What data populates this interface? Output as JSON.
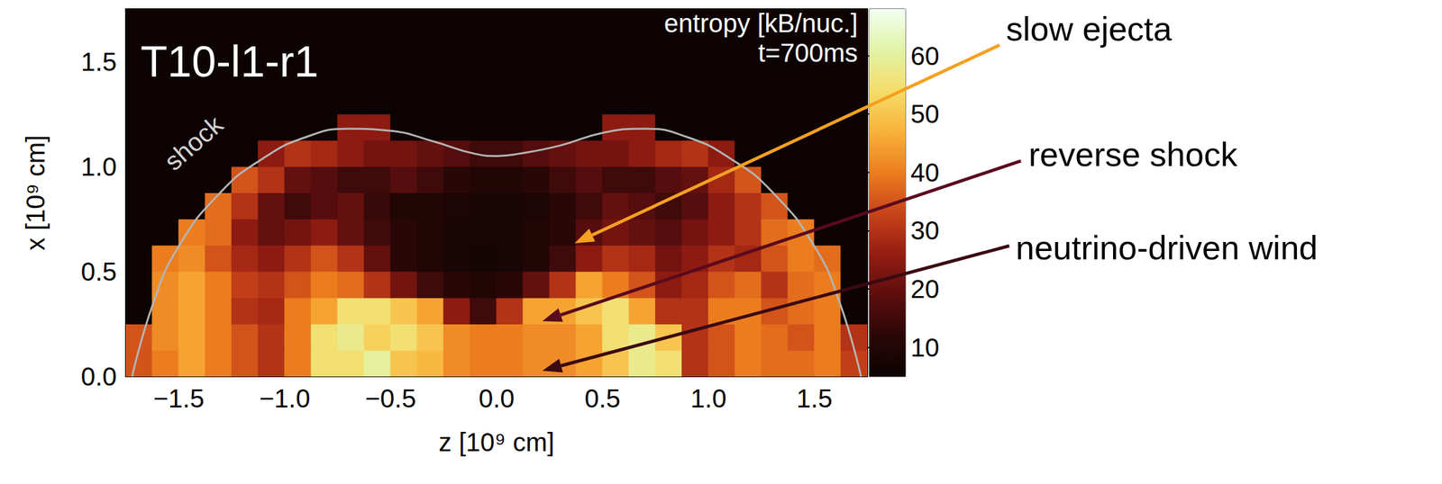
{
  "chart_data": {
    "type": "heatmap",
    "title": "T10-l1-r1",
    "subtitle": "t=700ms",
    "xlabel": "z [10⁹ cm]",
    "ylabel": "x [10⁹ cm]",
    "xlim": [
      -1.75,
      1.75
    ],
    "ylim": [
      0,
      1.75
    ],
    "xticks": [
      {
        "value": -1.5,
        "label": "−1.5"
      },
      {
        "value": -1,
        "label": "−1.0"
      },
      {
        "value": -0.5,
        "label": "−0.5"
      },
      {
        "value": 0,
        "label": "0.0"
      },
      {
        "value": 0.5,
        "label": "0.5"
      },
      {
        "value": 1,
        "label": "1.0"
      },
      {
        "value": 1.5,
        "label": "1.5"
      }
    ],
    "yticks": [
      {
        "value": 0,
        "label": "0.0"
      },
      {
        "value": 0.5,
        "label": "0.5"
      },
      {
        "value": 1,
        "label": "1.0"
      },
      {
        "value": 1.5,
        "label": "1.5"
      }
    ],
    "x_edges": [
      -1.75,
      -1.625,
      -1.5,
      -1.375,
      -1.25,
      -1.125,
      -1,
      -0.875,
      -0.75,
      -0.625,
      -0.5,
      -0.375,
      -0.25,
      -0.125,
      0,
      0.125,
      0.25,
      0.375,
      0.5,
      0.625,
      0.75,
      0.875,
      1,
      1.125,
      1.25,
      1.375,
      1.5,
      1.625,
      1.75
    ],
    "y_edges": [
      0,
      0.125,
      0.25,
      0.375,
      0.5,
      0.625,
      0.75,
      0.875,
      1,
      1.125,
      1.25,
      1.375,
      1.5,
      1.625,
      1.75
    ],
    "cells": [
      [
        35,
        40,
        45,
        40,
        35,
        30,
        40,
        55,
        55,
        60,
        50,
        48,
        42,
        40,
        40,
        42,
        42,
        45,
        50,
        58,
        55,
        30,
        35,
        40,
        38,
        38,
        40,
        32
      ],
      [
        35,
        42,
        45,
        40,
        35,
        30,
        40,
        55,
        58,
        52,
        55,
        50,
        42,
        40,
        40,
        42,
        42,
        45,
        55,
        58,
        50,
        30,
        35,
        40,
        38,
        35,
        40,
        30
      ],
      [
        5,
        42,
        45,
        40,
        30,
        28,
        40,
        45,
        55,
        55,
        50,
        45,
        25,
        15,
        30,
        45,
        45,
        50,
        55,
        45,
        30,
        30,
        40,
        40,
        35,
        38,
        40,
        5
      ],
      [
        5,
        42,
        45,
        40,
        32,
        30,
        35,
        40,
        38,
        30,
        22,
        15,
        12,
        10,
        12,
        20,
        30,
        45,
        40,
        35,
        25,
        28,
        35,
        38,
        30,
        38,
        40,
        5
      ],
      [
        5,
        40,
        42,
        35,
        28,
        25,
        30,
        35,
        30,
        20,
        12,
        10,
        8,
        7,
        8,
        10,
        15,
        25,
        30,
        28,
        22,
        25,
        30,
        28,
        35,
        40,
        38,
        5
      ],
      [
        5,
        5,
        40,
        38,
        25,
        20,
        22,
        25,
        20,
        15,
        12,
        10,
        8,
        8,
        8,
        10,
        12,
        18,
        22,
        20,
        18,
        22,
        25,
        30,
        38,
        40,
        5,
        5
      ],
      [
        5,
        5,
        5,
        38,
        30,
        20,
        15,
        18,
        20,
        14,
        10,
        10,
        9,
        8,
        8,
        9,
        12,
        15,
        20,
        18,
        15,
        18,
        25,
        30,
        35,
        5,
        5,
        5
      ],
      [
        5,
        5,
        5,
        5,
        35,
        30,
        20,
        18,
        15,
        15,
        18,
        15,
        12,
        10,
        10,
        12,
        15,
        18,
        15,
        15,
        18,
        20,
        28,
        35,
        5,
        5,
        5,
        5
      ],
      [
        5,
        5,
        5,
        5,
        5,
        25,
        30,
        28,
        25,
        22,
        22,
        20,
        18,
        15,
        15,
        18,
        20,
        22,
        22,
        25,
        28,
        30,
        25,
        5,
        5,
        5,
        5,
        5
      ],
      [
        5,
        5,
        5,
        5,
        5,
        5,
        5,
        5,
        25,
        25,
        5,
        5,
        5,
        5,
        5,
        5,
        5,
        5,
        25,
        25,
        5,
        5,
        5,
        5,
        5,
        5,
        5,
        5
      ],
      [
        5,
        5,
        5,
        5,
        5,
        5,
        5,
        5,
        5,
        5,
        5,
        5,
        5,
        5,
        5,
        5,
        5,
        5,
        5,
        5,
        5,
        5,
        5,
        5,
        5,
        5,
        5,
        5
      ],
      [
        5,
        5,
        5,
        5,
        5,
        5,
        5,
        5,
        5,
        5,
        5,
        5,
        5,
        5,
        5,
        5,
        5,
        5,
        5,
        5,
        5,
        5,
        5,
        5,
        5,
        5,
        5,
        5
      ],
      [
        5,
        5,
        5,
        5,
        5,
        5,
        5,
        5,
        5,
        5,
        5,
        5,
        5,
        5,
        5,
        5,
        5,
        5,
        5,
        5,
        5,
        5,
        5,
        5,
        5,
        5,
        5,
        5
      ],
      [
        5,
        5,
        5,
        5,
        5,
        5,
        5,
        5,
        5,
        5,
        5,
        5,
        5,
        5,
        5,
        5,
        5,
        5,
        5,
        5,
        5,
        5,
        5,
        5,
        5,
        5,
        5,
        5
      ]
    ],
    "colorbar": {
      "label": "entropy [kB/nuc.]",
      "range": [
        5,
        68
      ],
      "ticks": [
        10,
        20,
        30,
        40,
        50,
        60
      ],
      "colors": [
        "#0d0303",
        "#2a0707",
        "#5c0e0e",
        "#951d12",
        "#c8441a",
        "#ec7d1e",
        "#f8b33a",
        "#f5dd6a",
        "#e2f3a6",
        "#f2fff2"
      ]
    },
    "shock_front": {
      "label": "shock",
      "color": "#b4b4b4",
      "points": [
        [
          -1.72,
          0
        ],
        [
          -1.62,
          0.35
        ],
        [
          -1.5,
          0.62
        ],
        [
          -1.3,
          0.88
        ],
        [
          -1.1,
          1.04
        ],
        [
          -0.9,
          1.14
        ],
        [
          -0.7,
          1.18
        ],
        [
          -0.5,
          1.17
        ],
        [
          -0.3,
          1.12
        ],
        [
          -0.1,
          1.06
        ],
        [
          0,
          1.05
        ],
        [
          0.1,
          1.06
        ],
        [
          0.3,
          1.1
        ],
        [
          0.5,
          1.16
        ],
        [
          0.7,
          1.18
        ],
        [
          0.9,
          1.14
        ],
        [
          1.1,
          1.04
        ],
        [
          1.3,
          0.88
        ],
        [
          1.5,
          0.62
        ],
        [
          1.62,
          0.35
        ],
        [
          1.72,
          0
        ]
      ]
    },
    "annotations": [
      {
        "text": "slow ejecta",
        "color": "#f5a020"
      },
      {
        "text": "reverse shock",
        "color": "#5a0a1e"
      },
      {
        "text": "neutrino-driven wind",
        "color": "#3a0a12"
      }
    ]
  }
}
